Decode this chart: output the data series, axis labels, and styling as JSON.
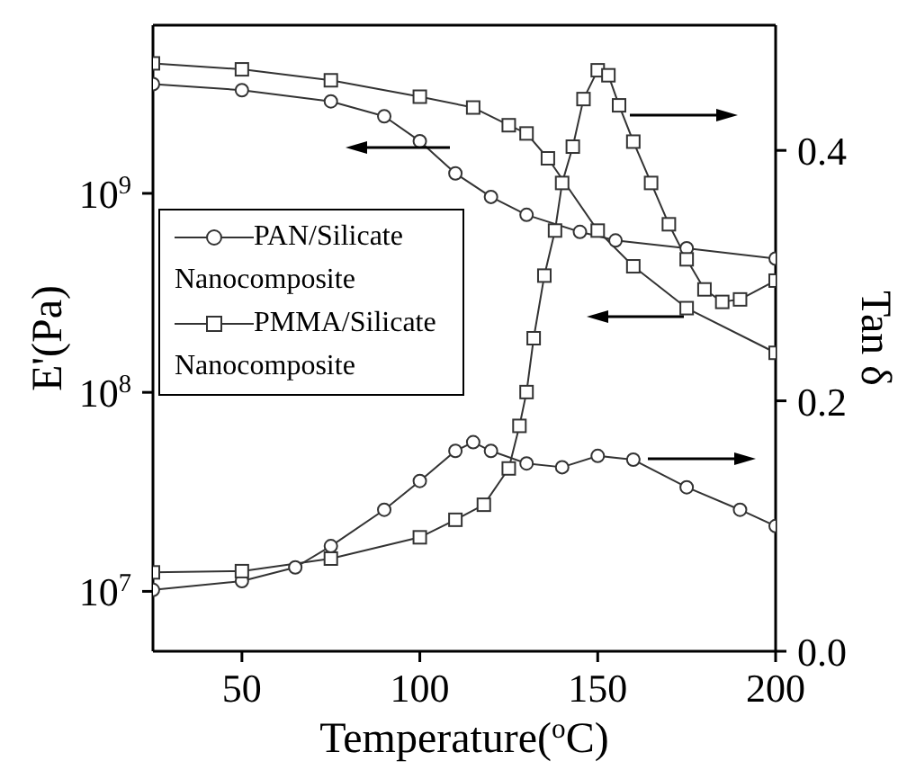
{
  "chart_data": {
    "type": "line",
    "xlabel": "Temperature($^{o}$C)",
    "ylabel": "E'(Pa)",
    "y2label": "Tan δ",
    "log": "y",
    "legend": "left",
    "xlim": [
      25,
      200
    ],
    "xticks": [
      50,
      100,
      150,
      200
    ],
    "ylim": [
      5000000,
      7000000000
    ],
    "yticks": [
      {
        "value": 10000000,
        "label": "10$^{7}$"
      },
      {
        "value": 100000000,
        "label": "10$^{8}$"
      },
      {
        "value": 1000000000,
        "label": "10$^{9}$"
      }
    ],
    "y2lim": [
      0,
      0.5
    ],
    "y2ticks": [
      {
        "value": 0,
        "label": "0.0"
      },
      {
        "value": 0.2,
        "label": "0.2"
      },
      {
        "value": 0.4,
        "label": "0.4"
      }
    ],
    "series": [
      {
        "name": "PAN/Silicate Nanocomposite",
        "color": "#333333",
        "marker": "circle",
        "x": [
          25,
          50,
          75,
          90,
          100,
          110,
          120,
          130,
          145,
          155,
          175,
          200
        ],
        "values": [
          3540000000,
          3300000000,
          2900000000,
          2440000000,
          1830000000,
          1260000000,
          960000000,
          780000000,
          640000000,
          580000000,
          530000000,
          470000000
        ]
      },
      {
        "name": "PMMA/Silicate Nanocomposite",
        "color": "#333333",
        "marker": "square",
        "x": [
          25,
          50,
          75,
          100,
          115,
          125,
          130,
          136,
          150,
          160,
          175,
          200
        ],
        "values": [
          4500000000,
          4200000000,
          3700000000,
          3060000000,
          2700000000,
          2200000000,
          2000000000,
          1500000000,
          650000000,
          430000000,
          265000000,
          158000000
        ]
      },
      {
        "color": "#333333",
        "marker": "circle",
        "axis": "y2",
        "x": [
          25,
          50,
          65,
          75,
          90,
          100,
          110,
          115,
          120,
          130,
          140,
          150,
          160,
          175,
          190,
          200
        ],
        "values": [
          0.049,
          0.056,
          0.067,
          0.084,
          0.113,
          0.136,
          0.16,
          0.167,
          0.16,
          0.15,
          0.147,
          0.156,
          0.153,
          0.131,
          0.113,
          0.1
        ]
      },
      {
        "color": "#333333",
        "marker": "square",
        "axis": "y2",
        "x": [
          25,
          50,
          75,
          100,
          110,
          118,
          125,
          128,
          130,
          132,
          135,
          138,
          140,
          143,
          146,
          150,
          153,
          156,
          160,
          165,
          170,
          175,
          180,
          185,
          190,
          200
        ],
        "values": [
          0.063,
          0.064,
          0.074,
          0.091,
          0.105,
          0.117,
          0.146,
          0.18,
          0.207,
          0.25,
          0.3,
          0.336,
          0.374,
          0.403,
          0.441,
          0.464,
          0.46,
          0.436,
          0.407,
          0.374,
          0.341,
          0.313,
          0.289,
          0.279,
          0.281,
          0.296
        ]
      }
    ]
  }
}
